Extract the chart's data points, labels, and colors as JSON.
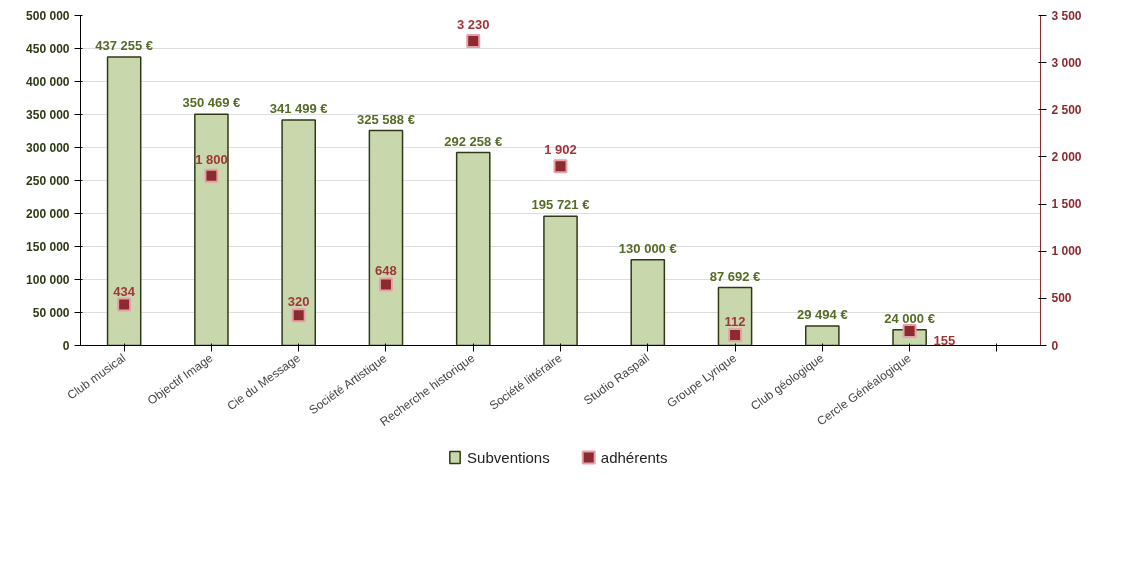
{
  "chart_data": {
    "type": "bar",
    "categories": [
      "Club musical",
      "Objectif Image",
      "Cie du Message",
      "Société Artistique",
      "Recherche historique",
      "Société littéraire",
      "Studio Raspail",
      "Groupe Lyrique",
      "Club géologique",
      "Cercle Généalogique",
      null
    ],
    "series": [
      {
        "name": "Subventions",
        "color": "#c8d8ac",
        "values": [
          437255,
          350469,
          341499,
          325588,
          292258,
          195721,
          130000,
          87692,
          29494,
          24000,
          null
        ],
        "value_labels": [
          "437 255 €",
          "350 469 €",
          "341 499 €",
          "325 588 €",
          "292 258 €",
          "195 721 €",
          "130 000 €",
          "87 692 €",
          "29 494 €",
          "24 000 €",
          null
        ]
      },
      {
        "name": "adhérents",
        "type": "scatter",
        "axis": "y2",
        "color": "#8b2a2f",
        "values": [
          434,
          1800,
          320,
          648,
          3230,
          1902,
          null,
          112,
          null,
          155,
          null
        ],
        "value_labels": [
          "434",
          "1 800",
          "320",
          "648",
          "3 230",
          "1 902",
          null,
          "112",
          null,
          "155",
          null
        ]
      }
    ],
    "ylim": [
      0,
      500000
    ],
    "yticks": [
      0,
      {
        "value": 50000,
        "label": "50 000"
      },
      {
        "value": 100000,
        "label": "100 000"
      },
      {
        "value": 150000,
        "label": "150 000"
      },
      {
        "value": 200000,
        "label": "200 000"
      },
      {
        "value": 250000,
        "label": "250 000"
      },
      {
        "value": 300000,
        "label": "300 000"
      },
      {
        "value": 350000,
        "label": "350 000"
      },
      {
        "value": 400000,
        "label": "400 000"
      },
      {
        "value": 450000,
        "label": "450 000"
      },
      {
        "value": 500000,
        "label": "500 000"
      }
    ],
    "y2lim": [
      0,
      3500
    ],
    "y2ticks": [
      0,
      500,
      {
        "value": 1000,
        "label": "1 000"
      },
      {
        "value": 1500,
        "label": "1 500"
      },
      {
        "value": 2000,
        "label": "2 000"
      },
      {
        "value": 2500,
        "label": "2 500"
      },
      {
        "value": 3000,
        "label": "3 000"
      },
      {
        "value": 3500,
        "label": "3 500"
      }
    ],
    "grid": "y",
    "legend": "bottom",
    "marker": "square"
  }
}
